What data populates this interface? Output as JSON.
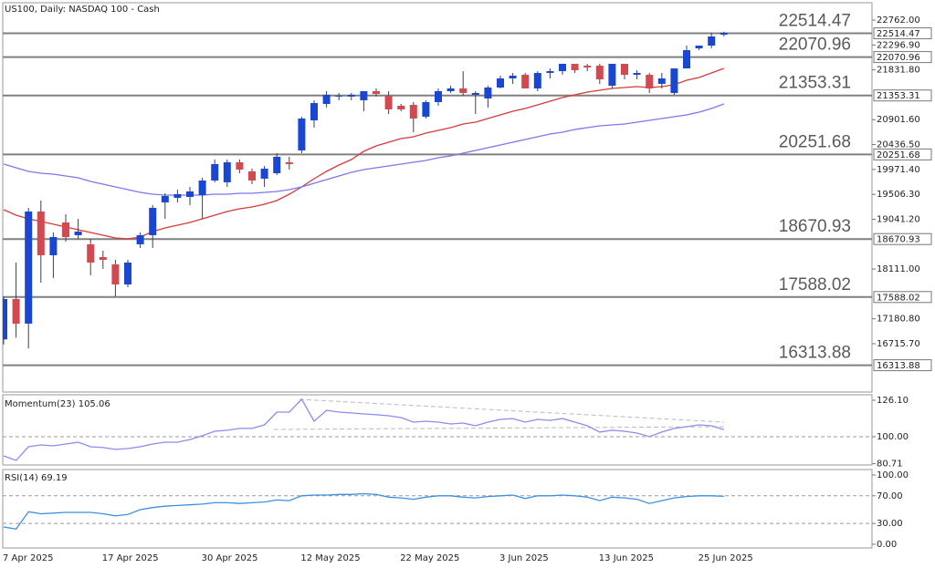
{
  "chart_data": [
    {
      "type": "candlestick",
      "title": "US100, Daily:  NASDAQ 100 - Cash",
      "categories": [
        "7 Apr 2025",
        null,
        null,
        null,
        null,
        null,
        null,
        null,
        "17 Apr 2025",
        null,
        null,
        null,
        null,
        null,
        null,
        null,
        "30 Apr 2025",
        null,
        null,
        null,
        null,
        null,
        null,
        null,
        "12 May 2025",
        null,
        null,
        null,
        null,
        null,
        null,
        null,
        "22 May 2025",
        null,
        null,
        null,
        null,
        null,
        null,
        null,
        "3 Jun 2025",
        null,
        null,
        null,
        null,
        null,
        null,
        null,
        "13 Jun 2025",
        null,
        null,
        null,
        null,
        null,
        null,
        null,
        "25 Jun 2025",
        null,
        null
      ],
      "open": [
        16796,
        17551,
        17091,
        19186,
        18368,
        18981,
        18743,
        18573,
        18334,
        18198,
        17823,
        18573,
        18743,
        19356,
        19441,
        19458,
        19492,
        19765,
        19731,
        20105,
        19935,
        19799,
        19901,
        20105,
        20327,
        20889,
        21195,
        21332,
        21332,
        21264,
        21434,
        21349,
        21161,
        21178,
        20957,
        21230,
        21434,
        21485,
        21366,
        21298,
        21502,
        21672,
        21740,
        21485,
        21774,
        21808,
        21945,
        21910,
        21910,
        21536,
        21945,
        21740,
        21740,
        21570,
        21400,
        21859,
        22234,
        22285,
        22490
      ],
      "high": [
        17600,
        18232,
        19254,
        19390,
        18794,
        19135,
        19050,
        18675,
        18454,
        18283,
        18283,
        18794,
        19305,
        19526,
        19595,
        19646,
        19816,
        20157,
        20157,
        20157,
        19986,
        20037,
        20276,
        20208,
        20957,
        21264,
        21434,
        21400,
        21400,
        21434,
        21485,
        21434,
        21195,
        21230,
        21264,
        21485,
        21536,
        21808,
        21434,
        21536,
        21723,
        21774,
        21774,
        21808,
        21859,
        21945,
        21945,
        21945,
        21945,
        21945,
        21945,
        21825,
        21774,
        21774,
        21859,
        22285,
        22285,
        22524,
        22545
      ],
      "low": [
        16700,
        16830,
        16626,
        17857,
        17943,
        18624,
        18675,
        17994,
        18113,
        17602,
        17772,
        18505,
        18505,
        19050,
        19356,
        19305,
        19050,
        19731,
        19646,
        19901,
        19697,
        19646,
        19867,
        19969,
        20276,
        20753,
        21127,
        21264,
        21264,
        21059,
        21332,
        21008,
        21059,
        20667,
        20923,
        21161,
        21400,
        21349,
        21008,
        21127,
        21485,
        21570,
        21485,
        21434,
        21672,
        21740,
        21774,
        21808,
        21570,
        21485,
        21655,
        21655,
        21400,
        21485,
        21366,
        21859,
        22200,
        22234,
        22456
      ],
      "close": [
        17551,
        17091,
        19186,
        18368,
        18709,
        18709,
        18811,
        18232,
        18283,
        17823,
        18232,
        18743,
        19254,
        19475,
        19509,
        19561,
        19765,
        20071,
        20105,
        19969,
        19765,
        19986,
        20208,
        20071,
        20923,
        21212,
        21366,
        21349,
        21366,
        21434,
        21383,
        21093,
        21093,
        20923,
        21230,
        21434,
        21485,
        21400,
        21400,
        21502,
        21672,
        21723,
        21485,
        21774,
        21808,
        21945,
        21825,
        21876,
        21655,
        21945,
        21740,
        21774,
        21485,
        21672,
        21859,
        22200,
        22285,
        22456,
        22524
      ],
      "up_color": "#1947d1",
      "down_color": "#d24a4f",
      "wick_color": "#404040",
      "series": [
        {
          "color": "#d93a3a",
          "values": [
            19220,
            19118,
            19050,
            18999,
            18948,
            18896,
            18845,
            18794,
            18743,
            18692,
            18675,
            18709,
            18811,
            18879,
            18930,
            18981,
            19050,
            19118,
            19186,
            19237,
            19271,
            19322,
            19390,
            19509,
            19646,
            19799,
            19935,
            20054,
            20157,
            20310,
            20412,
            20480,
            20548,
            20583,
            20651,
            20702,
            20753,
            20821,
            20855,
            20923,
            20991,
            21059,
            21110,
            21178,
            21247,
            21315,
            21366,
            21417,
            21451,
            21485,
            21502,
            21519,
            21502,
            21519,
            21553,
            21638,
            21689,
            21774,
            21859
          ]
        },
        {
          "color": "#7b78ee",
          "values": [
            20071,
            20003,
            19935,
            19901,
            19884,
            19850,
            19816,
            19748,
            19697,
            19646,
            19595,
            19543,
            19509,
            19492,
            19492,
            19492,
            19492,
            19509,
            19509,
            19526,
            19526,
            19543,
            19561,
            19595,
            19646,
            19714,
            19782,
            19850,
            19918,
            19969,
            20003,
            20037,
            20071,
            20105,
            20139,
            20191,
            20225,
            20276,
            20327,
            20378,
            20429,
            20480,
            20531,
            20583,
            20634,
            20667,
            20719,
            20753,
            20787,
            20804,
            20821,
            20855,
            20889,
            20923,
            20957,
            20991,
            21042,
            21110,
            21195
          ]
        }
      ],
      "levels": [
        22514.47,
        22070.96,
        21353.31,
        20251.68,
        18670.93,
        17588.02,
        16313.88
      ],
      "level_color": "#808080",
      "ylim": [
        15813,
        23086
      ],
      "yticks": [
        {
          "value": 22762,
          "label": "22762.00"
        },
        {
          "value": 22296.9,
          "label": "22296.90"
        },
        {
          "value": 21831.8,
          "label": "21831.80"
        },
        {
          "value": 20901.6,
          "label": "20901.60"
        },
        {
          "value": 20436.5,
          "label": "20436.50"
        },
        {
          "value": 19971.4,
          "label": "19971.40"
        },
        {
          "value": 19506.3,
          "label": "19506.30"
        },
        {
          "value": 19041.2,
          "label": "19041.20"
        },
        {
          "value": 18111,
          "label": "18111.00"
        },
        {
          "value": 17180.8,
          "label": "17180.80"
        },
        {
          "value": 16715.7,
          "label": "16715.70"
        }
      ]
    },
    {
      "type": "line",
      "title": "Momentum(23)",
      "series": [
        {
          "color": "#8a8cf0",
          "values": [
            86.3,
            83.0,
            92.8,
            94.1,
            93.5,
            94.8,
            96.1,
            92.8,
            92.2,
            90.9,
            91.5,
            92.8,
            94.8,
            96.1,
            96.1,
            98.0,
            100.7,
            103.9,
            104.6,
            105.9,
            105.9,
            108.5,
            117.6,
            117.6,
            126.8,
            111.1,
            118.9,
            117.6,
            117.0,
            116.3,
            115.7,
            115.0,
            113.7,
            110.4,
            111.1,
            110.4,
            109.1,
            109.8,
            107.8,
            110.4,
            112.4,
            113.0,
            110.4,
            112.4,
            111.7,
            113.0,
            110.4,
            107.8,
            103.3,
            104.6,
            103.9,
            102.6,
            100.0,
            103.3,
            105.9,
            107.2,
            108.5,
            107.8,
            105.06
          ]
        }
      ],
      "levels": [
        100
      ],
      "ylim": [
        79.77,
        130.0
      ],
      "yticks": [
        {
          "value": 126.1,
          "label": "126.10"
        },
        {
          "value": 100,
          "label": "100.00"
        },
        80.71
      ]
    },
    {
      "type": "line",
      "title": "RSI(14)",
      "series": [
        {
          "color": "#3f8fe0",
          "values": [
            25,
            22,
            47,
            44,
            45,
            46,
            46,
            46,
            44,
            41,
            43,
            50,
            53,
            55,
            56,
            57,
            58,
            60,
            60,
            59,
            60,
            61,
            64,
            63,
            70,
            71,
            71,
            72,
            72,
            73,
            72,
            68,
            67,
            65,
            68,
            70,
            70,
            68,
            67,
            69,
            70,
            71,
            66,
            70,
            70,
            71,
            70,
            68,
            63,
            68,
            67,
            65,
            59,
            63,
            67,
            69,
            70,
            70,
            69.19
          ]
        }
      ],
      "levels": [
        70,
        30
      ],
      "ylim": [
        -5.3,
        107.9
      ],
      "yticks": [
        {
          "value": 100,
          "label": "100.00"
        },
        {
          "value": 70,
          "label": "70.00"
        },
        {
          "value": 30,
          "label": "30.00"
        },
        {
          "value": 0,
          "label": "0.00"
        }
      ]
    }
  ]
}
